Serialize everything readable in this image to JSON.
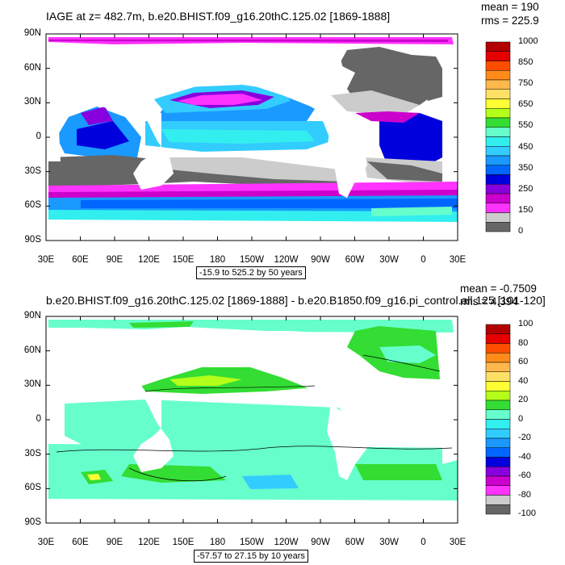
{
  "chart_data": [
    {
      "type": "heatmap",
      "title": "IAGE at z= 482.7m, b.e20.BHIST.f09_g16.20thC.125.02 [1869-1888]",
      "stats": {
        "mean": "mean = 190",
        "rms": "rms = 225.9"
      },
      "range_text": "-15.9 to 525.2 by 50 years",
      "x_ticks": [
        "30E",
        "60E",
        "90E",
        "120E",
        "150E",
        "180",
        "150W",
        "120W",
        "90W",
        "60W",
        "30W",
        "0",
        "30E"
      ],
      "y_ticks": [
        "90N",
        "60N",
        "30N",
        "0",
        "30S",
        "60S",
        "90S"
      ],
      "colorbar": {
        "labels": [
          "1000",
          "850",
          "750",
          "650",
          "550",
          "450",
          "350",
          "250",
          "150",
          "0"
        ],
        "colors": [
          "#b30000",
          "#e60000",
          "#ff4d00",
          "#ff8c1a",
          "#ffb84d",
          "#ffe066",
          "#ffff33",
          "#b3ff1a",
          "#33dd33",
          "#66ffcc",
          "#33eeee",
          "#33ccff",
          "#1a99ff",
          "#0066ff",
          "#0000dd",
          "#8800dd",
          "#cc00cc",
          "#ff33ff",
          "#cccccc",
          "#666666"
        ]
      }
    },
    {
      "type": "heatmap",
      "title": "b.e20.BHIST.f09_g16.20thC.125.02 [1869-1888] - b.e20.B1850.f09_g16.pi_control.all.125 [101-120]",
      "stats": {
        "mean": "mean = -0.7509",
        "rms": "rms = 4.394"
      },
      "range_text": "-57.57 to 27.15 by 10 years",
      "x_ticks": [
        "30E",
        "60E",
        "90E",
        "120E",
        "150E",
        "180",
        "150W",
        "120W",
        "90W",
        "60W",
        "30W",
        "0",
        "30E"
      ],
      "y_ticks": [
        "90N",
        "60N",
        "30N",
        "0",
        "30S",
        "60S",
        "90S"
      ],
      "colorbar": {
        "labels": [
          "100",
          "80",
          "60",
          "40",
          "20",
          "0",
          "-20",
          "-40",
          "-60",
          "-80",
          "-100"
        ],
        "colors": [
          "#b30000",
          "#e60000",
          "#ff4d00",
          "#ff8c1a",
          "#ffb84d",
          "#ffe066",
          "#ffff33",
          "#b3ff1a",
          "#33dd33",
          "#66ffcc",
          "#33eeee",
          "#33ccff",
          "#1a99ff",
          "#0066ff",
          "#0000dd",
          "#8800dd",
          "#cc00cc",
          "#ff33ff",
          "#cccccc",
          "#666666"
        ]
      }
    }
  ]
}
